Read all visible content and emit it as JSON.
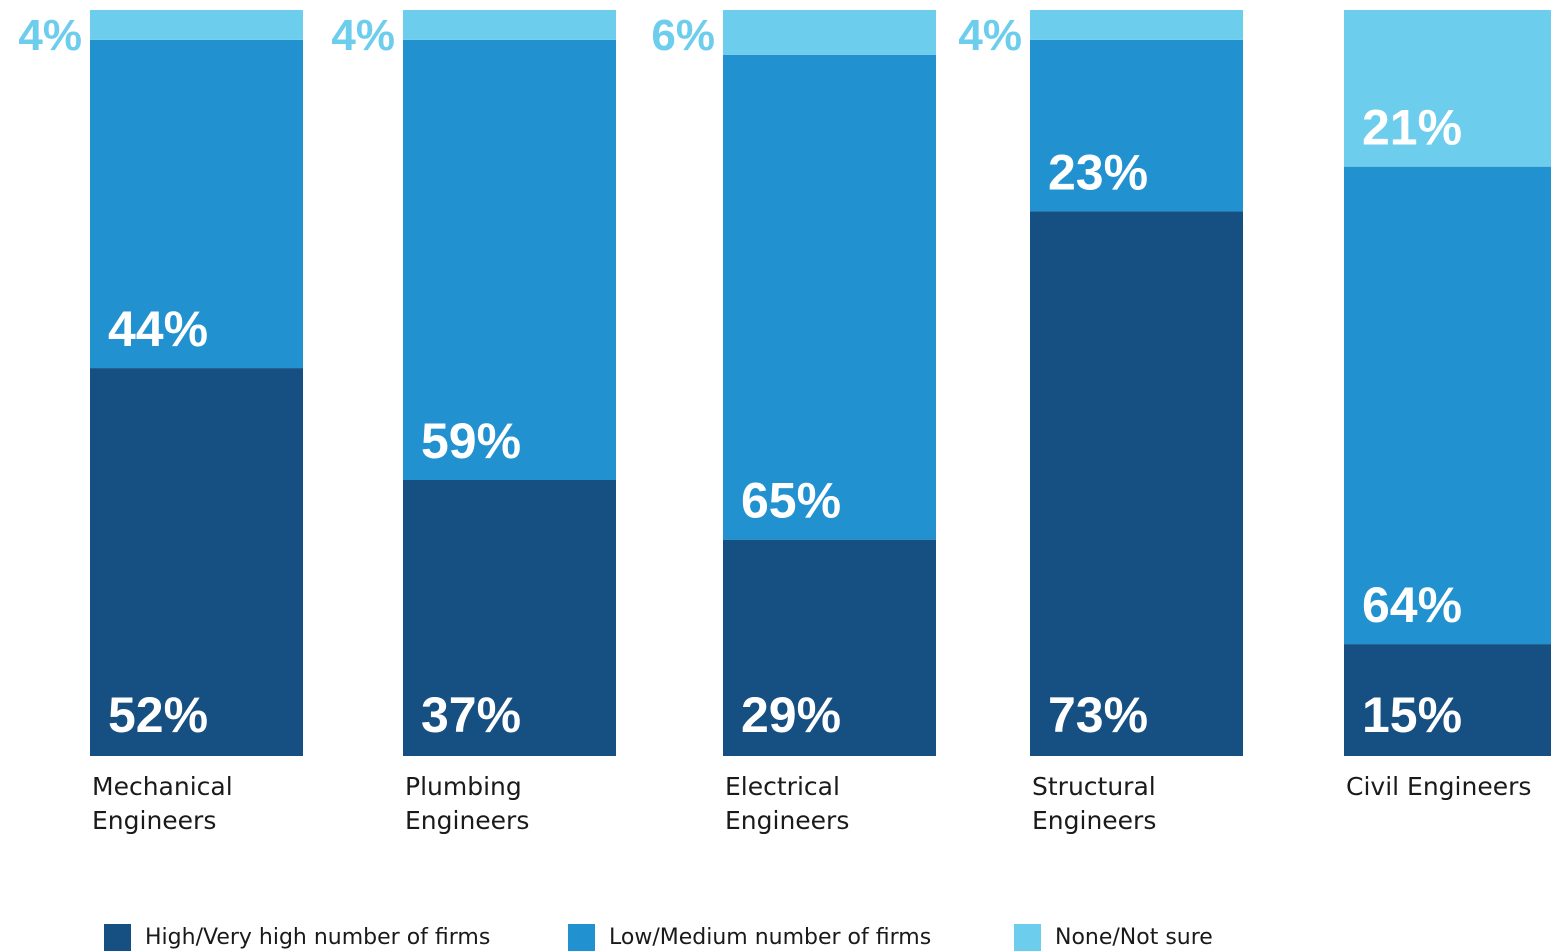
{
  "chart_data": {
    "type": "bar",
    "stacked": true,
    "categories": [
      [
        "Mechanical",
        "Engineers"
      ],
      [
        "Plumbing",
        "Engineers"
      ],
      [
        "Electrical",
        "Engineers"
      ],
      [
        "Structural",
        "Engineers"
      ],
      [
        "Civil Engineers"
      ]
    ],
    "series": [
      {
        "name": "High/Very high number of firms",
        "color": "#164f82",
        "values": [
          52,
          37,
          29,
          73,
          15
        ]
      },
      {
        "name": "Low/Medium number of firms",
        "color": "#2191d0",
        "values": [
          44,
          59,
          65,
          23,
          64
        ]
      },
      {
        "name": "None/Not sure",
        "color": "#6ccdec",
        "values": [
          4,
          4,
          6,
          4,
          21
        ]
      }
    ],
    "value_suffix": "%",
    "legend_position": "bottom",
    "grid": false
  },
  "legend": {
    "high_label": "High/Very high number of firms",
    "low_label": "Low/Medium number of firms",
    "none_label": "None/Not sure"
  }
}
